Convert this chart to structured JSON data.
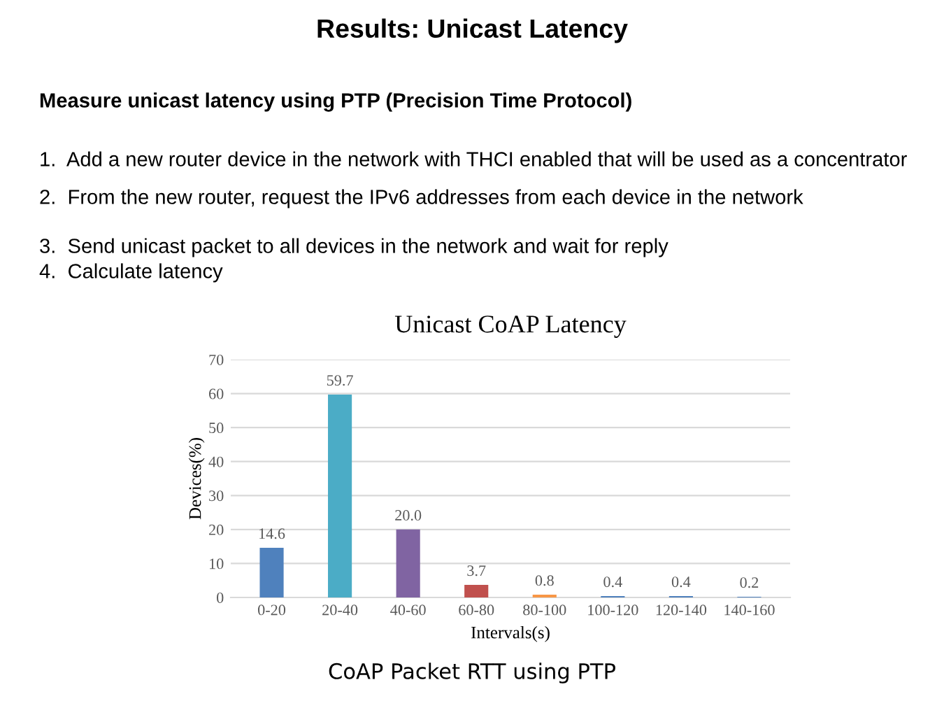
{
  "chart_data": {
    "type": "bar",
    "title": "Results: Unicast Latency",
    "subtitle": "Unicast CoAP Latency",
    "xlabel": "Intervals(s)",
    "ylabel": "Devices(%)",
    "categories": [
      "0-20",
      "20-40",
      "40-60",
      "60-80",
      "80-100",
      "100-120",
      "120-140",
      "140-160"
    ],
    "values": [
      14.6,
      59.7,
      20.0,
      3.7,
      0.8,
      0.4,
      0.4,
      0.2
    ],
    "value_labels": [
      "14.6",
      "59.7",
      "20.0",
      "3.7",
      "0.8",
      "0.4",
      "0.4",
      "0.2"
    ],
    "colors": [
      "#4f81bd",
      "#4bacc6",
      "#8064a2",
      "#c0504d",
      "#f79646",
      "#4f81bd",
      "#4f81bd",
      "#4f81bd"
    ],
    "ylim": [
      0,
      70
    ],
    "yticks": [
      0,
      10,
      20,
      30,
      40,
      50,
      60,
      70
    ],
    "grid": "y",
    "legend": false,
    "annotations": [
      "Measure unicast latency using PTP (Precision Time Protocol)",
      "1.  Add a new router device in the network with THCI enabled that will be used as a concentrator",
      "2.  From the new router, request the IPv6 addresses from each device in the network",
      "3.  Send unicast packet to all devices in the network and wait for reply",
      "4.  Calculate latency",
      "CoAP Packet RTT using PTP"
    ]
  }
}
